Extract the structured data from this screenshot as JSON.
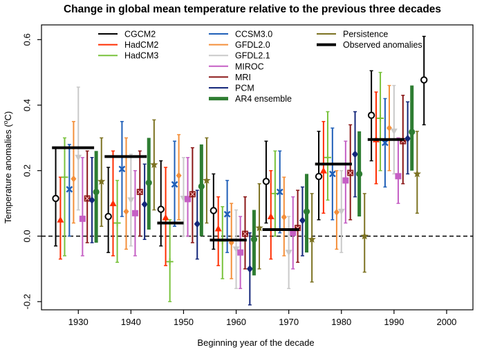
{
  "chart_data": {
    "type": "scatter",
    "title": "Change in global mean temperature relative to the previous three decades",
    "xlabel": "Beginning year of the decade",
    "ylabel": "Temperature anomalies (",
    "ylabel_sup": "o",
    "ylabel_end": "C)",
    "xlim": [
      1923,
      2005
    ],
    "ylim": [
      -0.225,
      0.645
    ],
    "x": [
      1930,
      1940,
      1950,
      1960,
      1970,
      1980,
      1990,
      2000
    ],
    "x_tick_labels": [
      "1930",
      "1940",
      "1950",
      "1960",
      "1970",
      "1980",
      "1990",
      "2000"
    ],
    "y_ticks": [
      -0.2,
      0.0,
      0.2,
      0.4,
      0.6
    ],
    "y_tick_labels": [
      "-0.2",
      "0.0",
      "0.2",
      "0.4",
      "0.6"
    ],
    "zero_line": 0,
    "legend_col1": [
      "CGCM2",
      "HadCM2",
      "HadCM3"
    ],
    "legend_col2": [
      "CCSM3.0",
      "GFDL2.0",
      "GFDL2.1",
      "MIROC",
      "MRI",
      "PCM",
      "AR4 ensemble"
    ],
    "legend_col3": [
      "Persistence",
      "Observed anomalies"
    ],
    "series": [
      {
        "name": "CGCM2",
        "color": "#000000",
        "marker": "open-circle",
        "offset": -4.3,
        "values": [
          0.115,
          0.06,
          0.082,
          0.078,
          0.167,
          0.182,
          0.369,
          0.477
        ],
        "lower": [
          -0.03,
          -0.05,
          -0.03,
          -0.04,
          0.04,
          0.05,
          0.23,
          0.34
        ],
        "upper": [
          0.27,
          0.21,
          0.23,
          0.19,
          0.29,
          0.32,
          0.505,
          0.61
        ]
      },
      {
        "name": "HadCM2",
        "color": "#ff2d00",
        "marker": "triangle",
        "offset": -3.4,
        "values": [
          0.05,
          0.1,
          0.057,
          0.023,
          0.06,
          0.2,
          0.295,
          null
        ],
        "lower": [
          -0.07,
          -0.06,
          -0.09,
          -0.09,
          -0.07,
          0.07,
          0.16,
          null
        ],
        "upper": [
          0.18,
          0.26,
          0.21,
          0.12,
          0.2,
          0.35,
          0.44,
          null
        ]
      },
      {
        "name": "HadCM3",
        "color": "#79c23c",
        "marker": "plus",
        "offset": -2.6,
        "values": [
          0.18,
          0.04,
          -0.078,
          -0.015,
          0.13,
          0.24,
          0.36,
          null
        ],
        "lower": [
          -0.06,
          -0.08,
          -0.2,
          -0.13,
          0.0,
          0.11,
          0.2,
          null
        ],
        "upper": [
          0.3,
          0.17,
          0.05,
          0.09,
          0.26,
          0.38,
          0.5,
          null
        ]
      },
      {
        "name": "CCSM3.0",
        "color": "#1f5fb8",
        "marker": "x",
        "offset": -1.7,
        "values": [
          0.143,
          0.205,
          0.158,
          0.067,
          0.135,
          0.19,
          0.285,
          null
        ],
        "lower": [
          0.0,
          0.06,
          0.03,
          -0.05,
          0.01,
          0.05,
          0.15,
          null
        ],
        "upper": [
          0.28,
          0.35,
          0.29,
          0.17,
          0.26,
          0.33,
          0.42,
          null
        ]
      },
      {
        "name": "GFDL2.0",
        "color": "#f48f3a",
        "marker": "diamond",
        "offset": -0.9,
        "values": [
          0.175,
          0.075,
          0.185,
          -0.02,
          0.058,
          0.073,
          0.33,
          null
        ],
        "lower": [
          0.04,
          -0.04,
          0.05,
          -0.13,
          -0.06,
          -0.04,
          0.2,
          null
        ],
        "upper": [
          0.35,
          0.3,
          0.31,
          0.1,
          0.18,
          0.2,
          0.46,
          null
        ]
      },
      {
        "name": "GFDL2.1",
        "color": "#c9c9c9",
        "marker": "triangle-down",
        "offset": 0.0,
        "values": [
          0.24,
          0.11,
          0.115,
          -0.04,
          -0.05,
          0.075,
          0.32,
          null
        ],
        "lower": [
          0.08,
          -0.03,
          0.0,
          -0.16,
          -0.16,
          -0.05,
          0.19,
          null
        ],
        "upper": [
          0.455,
          0.25,
          0.24,
          0.08,
          0.06,
          0.2,
          0.46,
          null
        ]
      },
      {
        "name": "MIROC",
        "color": "#c55fc4",
        "marker": "square",
        "offset": 0.8,
        "values": [
          0.053,
          0.07,
          0.113,
          -0.05,
          0.01,
          0.17,
          0.183,
          null
        ],
        "lower": [
          -0.06,
          -0.06,
          0.0,
          -0.16,
          -0.1,
          0.04,
          0.1,
          null
        ],
        "upper": [
          0.24,
          0.2,
          0.24,
          0.06,
          0.12,
          0.29,
          0.3,
          null
        ]
      },
      {
        "name": "MRI",
        "color": "#8a1616",
        "marker": "x-square",
        "offset": 1.7,
        "values": [
          0.115,
          0.135,
          0.128,
          0.007,
          0.025,
          0.193,
          0.29,
          null
        ],
        "lower": [
          -0.02,
          0.0,
          -0.02,
          -0.1,
          -0.08,
          0.05,
          0.16,
          null
        ],
        "upper": [
          0.26,
          0.26,
          0.27,
          0.12,
          0.14,
          0.34,
          0.43,
          null
        ]
      },
      {
        "name": "PCM",
        "color": "#13267a",
        "marker": "diamond-filled",
        "offset": 2.6,
        "values": [
          0.11,
          0.097,
          0.037,
          -0.1,
          0.048,
          0.25,
          0.298,
          null
        ],
        "lower": [
          -0.02,
          -0.01,
          -0.07,
          -0.21,
          -0.06,
          0.12,
          0.19,
          null
        ],
        "upper": [
          0.24,
          0.22,
          0.14,
          0.01,
          0.15,
          0.38,
          0.41,
          null
        ]
      },
      {
        "name": "AR4 ensemble",
        "color": "#2e7d32",
        "marker": "circle-filled",
        "offset": 3.4,
        "values": [
          0.135,
          0.163,
          0.152,
          -0.01,
          0.075,
          0.19,
          0.318,
          null
        ],
        "lower": [
          -0.02,
          0.02,
          0.0,
          -0.12,
          -0.05,
          0.06,
          0.2,
          null
        ],
        "upper": [
          0.26,
          0.3,
          0.28,
          0.08,
          0.19,
          0.32,
          0.46,
          null
        ]
      },
      {
        "name": "Persistence",
        "color": "#7c7222",
        "marker": "star",
        "offset": 4.4,
        "values": [
          0.167,
          0.218,
          0.17,
          0.025,
          -0.01,
          0.0,
          0.19,
          null
        ],
        "lower": [
          0.03,
          0.08,
          0.04,
          -0.1,
          -0.14,
          -0.11,
          0.07,
          null
        ],
        "upper": [
          0.3,
          0.355,
          0.3,
          0.16,
          0.13,
          0.13,
          0.32,
          null
        ]
      }
    ],
    "observed_anomalies": {
      "name": "Observed anomalies",
      "x_start": [
        1925,
        1935,
        1945,
        1955,
        1965,
        1975,
        1985
      ],
      "x_end": [
        1933,
        1943,
        1950,
        1962,
        1972,
        1982,
        1992
      ],
      "values": [
        0.27,
        0.243,
        0.04,
        -0.012,
        0.02,
        0.22,
        0.295
      ]
    }
  }
}
